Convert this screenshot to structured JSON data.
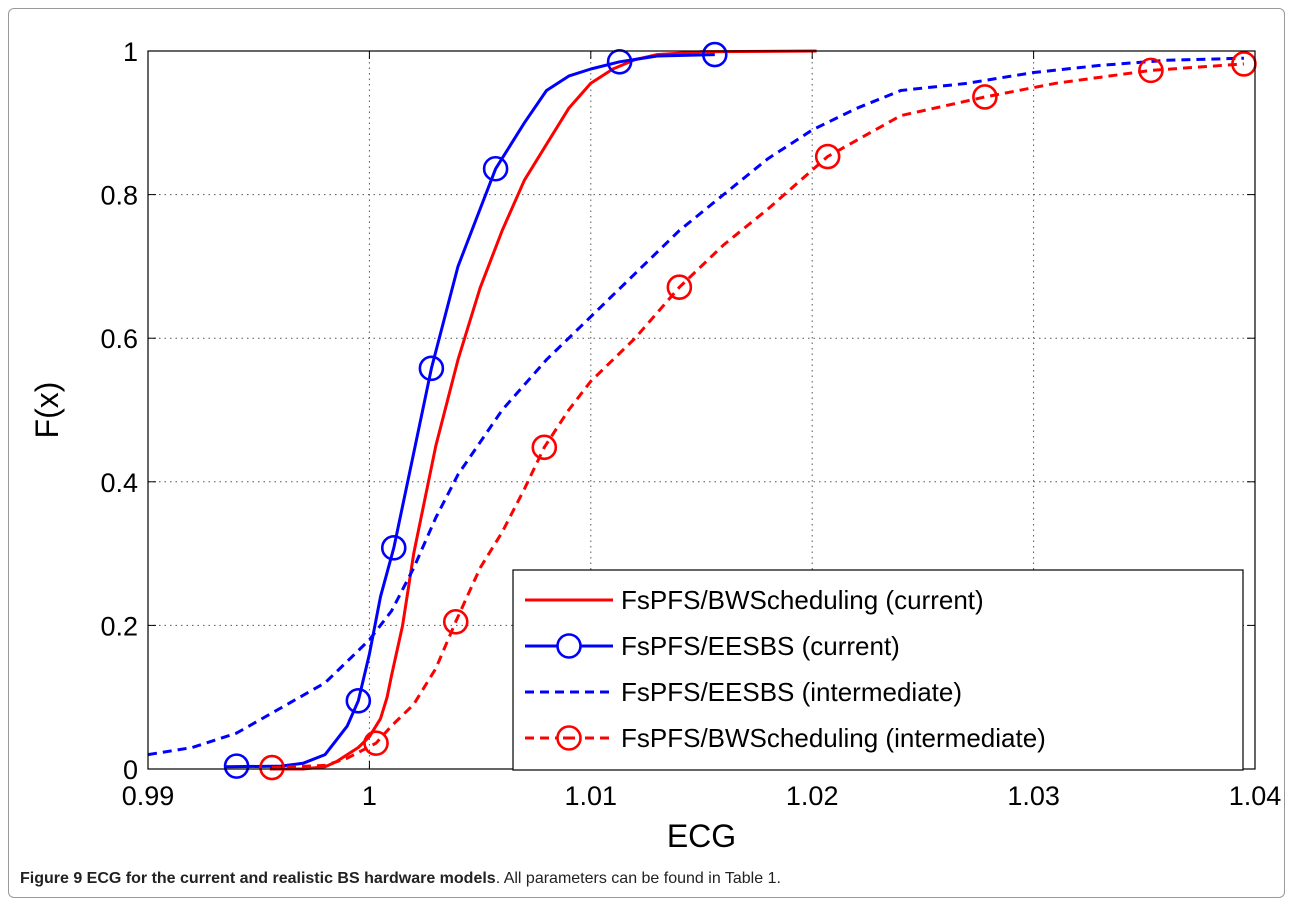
{
  "chart_data": {
    "type": "line",
    "xlabel": "ECG",
    "ylabel": "F(x)",
    "xlim": [
      0.99,
      1.04
    ],
    "ylim": [
      0,
      1
    ],
    "x_ticks": [
      "0.99",
      "1",
      "1.01",
      "1.02",
      "1.03",
      "1.04"
    ],
    "y_ticks": [
      "0",
      "0.2",
      "0.4",
      "0.6",
      "0.8",
      "1"
    ],
    "grid": true,
    "legend_position": "bottom-right",
    "series": [
      {
        "name": "FsPFS/BWScheduling (current)",
        "color": "#ff0000",
        "dash": "solid",
        "marker": "none",
        "x": [
          0.9955,
          0.997,
          0.998,
          0.9985,
          0.999,
          0.9995,
          1.0,
          1.0005,
          1.0008,
          1.001,
          1.0015,
          1.002,
          1.003,
          1.004,
          1.005,
          1.006,
          1.007,
          1.008,
          1.009,
          1.01,
          1.011,
          1.012,
          1.013,
          1.015,
          1.0202
        ],
        "y": [
          0.0,
          0.0,
          0.003,
          0.01,
          0.02,
          0.03,
          0.045,
          0.07,
          0.1,
          0.13,
          0.2,
          0.3,
          0.45,
          0.57,
          0.67,
          0.75,
          0.82,
          0.87,
          0.92,
          0.955,
          0.975,
          0.988,
          0.995,
          0.999,
          1.0
        ]
      },
      {
        "name": "FsPFS/EESBS (current)",
        "color": "#0000ff",
        "dash": "solid",
        "marker": "circle",
        "marker_x": [
          0.994,
          0.9995,
          1.0011,
          1.0028,
          1.0057,
          1.0113,
          1.0156
        ],
        "marker_y": [
          0.004,
          0.095,
          0.308,
          0.558,
          0.836,
          0.985,
          0.995
        ],
        "x": [
          0.9935,
          0.996,
          0.997,
          0.998,
          0.9985,
          0.999,
          0.9995,
          1.0,
          1.0005,
          1.0011,
          1.002,
          1.0028,
          1.004,
          1.005,
          1.0057,
          1.007,
          1.008,
          1.009,
          1.01,
          1.0113,
          1.013,
          1.0156
        ],
        "y": [
          0.003,
          0.004,
          0.008,
          0.02,
          0.04,
          0.06,
          0.095,
          0.16,
          0.24,
          0.308,
          0.44,
          0.558,
          0.7,
          0.78,
          0.836,
          0.9,
          0.945,
          0.965,
          0.975,
          0.985,
          0.993,
          0.995
        ]
      },
      {
        "name": "FsPFS/EESBS (intermediate)",
        "color": "#0000ff",
        "dash": "dashed",
        "marker": "none",
        "x": [
          0.99,
          0.992,
          0.994,
          0.996,
          0.998,
          0.999,
          1.0,
          1.001,
          1.002,
          1.003,
          1.004,
          1.006,
          1.008,
          1.01,
          1.012,
          1.014,
          1.016,
          1.018,
          1.02,
          1.022,
          1.024,
          1.027,
          1.03,
          1.033,
          1.036,
          1.0395
        ],
        "y": [
          0.02,
          0.03,
          0.05,
          0.085,
          0.12,
          0.15,
          0.18,
          0.22,
          0.28,
          0.35,
          0.41,
          0.5,
          0.57,
          0.63,
          0.69,
          0.75,
          0.8,
          0.85,
          0.89,
          0.92,
          0.945,
          0.955,
          0.97,
          0.98,
          0.987,
          0.99
        ]
      },
      {
        "name": "FsPFS/BWScheduling (intermediate)",
        "color": "#ff0000",
        "dash": "dashed",
        "marker": "circle",
        "marker_x": [
          0.9956,
          1.0003,
          1.0039,
          1.0079,
          1.014,
          1.0207,
          1.0278,
          1.0353,
          1.0395
        ],
        "marker_y": [
          0.002,
          0.036,
          0.205,
          0.448,
          0.671,
          0.853,
          0.936,
          0.973,
          0.982
        ],
        "x": [
          0.9956,
          0.998,
          0.999,
          1.0003,
          1.001,
          1.002,
          1.003,
          1.0039,
          1.005,
          1.006,
          1.007,
          1.0079,
          1.009,
          1.01,
          1.012,
          1.014,
          1.016,
          1.018,
          1.0207,
          1.024,
          1.0278,
          1.031,
          1.0353,
          1.0395
        ],
        "y": [
          0.002,
          0.005,
          0.015,
          0.036,
          0.06,
          0.09,
          0.14,
          0.205,
          0.28,
          0.33,
          0.39,
          0.448,
          0.5,
          0.54,
          0.6,
          0.671,
          0.73,
          0.78,
          0.853,
          0.91,
          0.936,
          0.955,
          0.973,
          0.982
        ]
      }
    ]
  },
  "caption": {
    "label": "Figure 9 ECG for the current and realistic BS hardware models",
    "text": ". All parameters can be found in Table 1."
  }
}
